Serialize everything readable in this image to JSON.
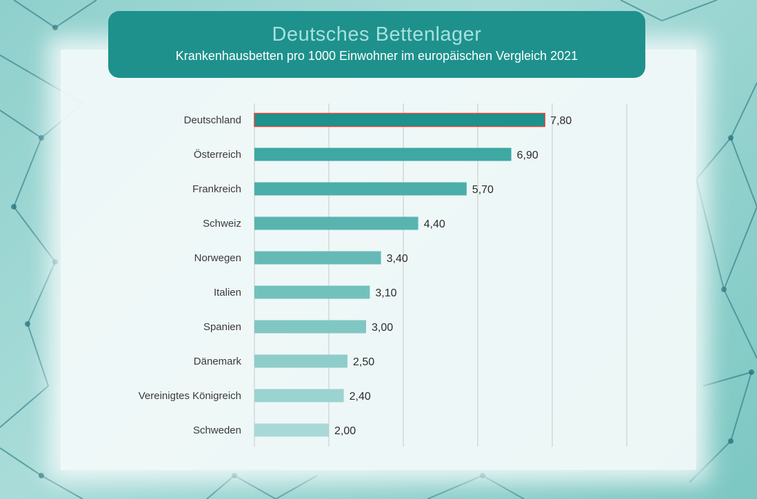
{
  "header": {
    "title": "Deutsches Bettenlager",
    "subtitle": "Krankenhausbetten pro 1000 Einwohner im europäischen Vergleich 2021"
  },
  "chart_data": {
    "type": "bar",
    "orientation": "horizontal",
    "title": "Deutsches Bettenlager",
    "subtitle": "Krankenhausbetten pro 1000 Einwohner im europäischen Vergleich 2021",
    "categories": [
      "Deutschland",
      "Österreich",
      "Frankreich",
      "Schweiz",
      "Norwegen",
      "Italien",
      "Spanien",
      "Dänemark",
      "Vereinigtes Königreich",
      "Schweden"
    ],
    "values": [
      7.8,
      6.9,
      5.7,
      4.4,
      3.4,
      3.1,
      3.0,
      2.5,
      2.4,
      2.0
    ],
    "value_labels": [
      "7,80",
      "6,90",
      "5,70",
      "4,40",
      "3,40",
      "3,10",
      "3,00",
      "2,50",
      "2,40",
      "2,00"
    ],
    "xlim": [
      0,
      10
    ],
    "grid_step": 2,
    "grid": true,
    "highlight": "Deutschland",
    "colors": {
      "highlight_fill": "#1e918c",
      "highlight_border": "#e0473a",
      "bar_start": "#3ea8a3",
      "bar_end": "#a8d9d6"
    }
  }
}
